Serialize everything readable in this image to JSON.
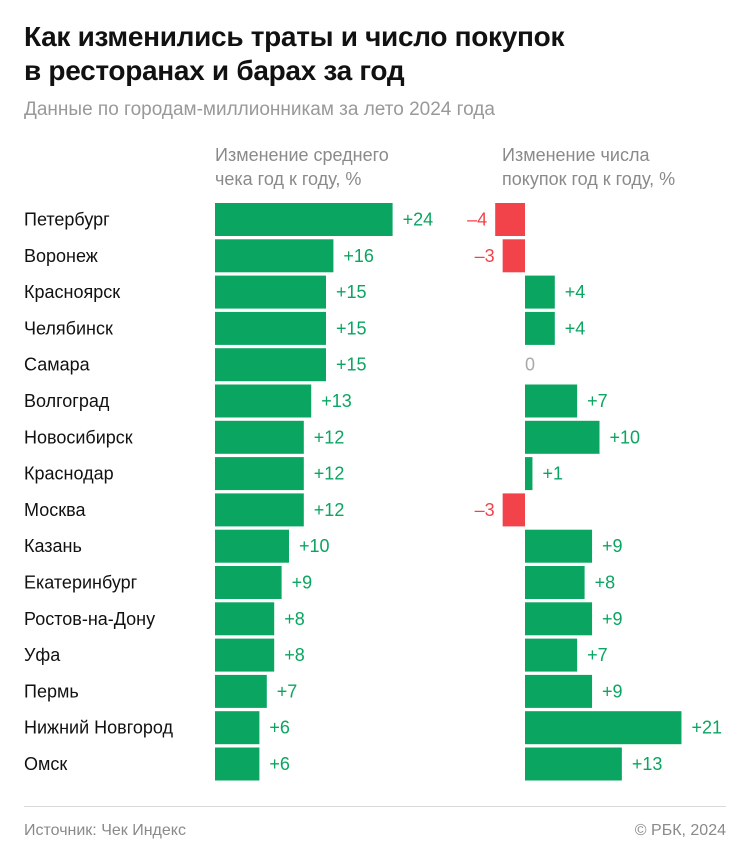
{
  "title_line1": "Как изменились траты и число покупок",
  "title_line2": "в ресторанах и барах за год",
  "subtitle": "Данные по городам-миллионникам за лето 2024 года",
  "column_headers": {
    "check_line1": "Изменение среднего",
    "check_line2": "чека год к году, %",
    "count_line1": "Изменение числа",
    "count_line2": "покупок год к году, %"
  },
  "footer": {
    "source": "Источник: Чек Индекс",
    "copyright": "© РБК, 2024"
  },
  "colors": {
    "positive": "#0aa560",
    "negative": "#f2424a",
    "zero_label": "#aaaaaa"
  },
  "chart_data": {
    "type": "bar",
    "orientation": "horizontal",
    "categories": [
      "Петербург",
      "Воронеж",
      "Красноярск",
      "Челябинск",
      "Самара",
      "Волгоград",
      "Новосибирск",
      "Краснодар",
      "Москва",
      "Казань",
      "Екатеринбург",
      "Ростов-на-Дону",
      "Уфа",
      "Пермь",
      "Нижний Новгород",
      "Омск"
    ],
    "series": [
      {
        "name": "Изменение среднего чека год к году, %",
        "values": [
          24,
          16,
          15,
          15,
          15,
          13,
          12,
          12,
          12,
          10,
          9,
          8,
          8,
          7,
          6,
          6
        ],
        "labels": [
          "+24",
          "+16",
          "+15",
          "+15",
          "+15",
          "+13",
          "+12",
          "+12",
          "+12",
          "+10",
          "+9",
          "+8",
          "+8",
          "+7",
          "+6",
          "+6"
        ]
      },
      {
        "name": "Изменение числа покупок год к году, %",
        "values": [
          -4,
          -3,
          4,
          4,
          0,
          7,
          10,
          1,
          -3,
          9,
          8,
          9,
          7,
          9,
          21,
          13
        ],
        "labels": [
          "–4",
          "–3",
          "+4",
          "+4",
          "0",
          "+7",
          "+10",
          "+1",
          "–3",
          "+9",
          "+8",
          "+9",
          "+7",
          "+9",
          "+21",
          "+13"
        ]
      }
    ]
  }
}
